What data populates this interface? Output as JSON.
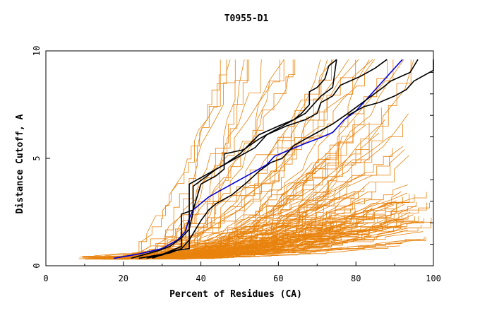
{
  "chart_data": {
    "type": "line",
    "title": "T0955-D1",
    "xlabel": "Percent of Residues (CA)",
    "ylabel": "Distance Cutoff, A",
    "xlim": [
      0,
      100
    ],
    "ylim": [
      0,
      10
    ],
    "x_ticks": [
      "0",
      "20",
      "40",
      "60",
      "80",
      "100"
    ],
    "y_ticks": [
      "0",
      "5",
      "10"
    ],
    "grid": false,
    "legend": "none",
    "colors": {
      "background_series": "#e8820c",
      "highlight_black": "#000000",
      "highlight_blue": "#0000dd"
    },
    "highlight_series": [
      {
        "color": "#0000dd",
        "points": [
          [
            17.5,
            0.35
          ],
          [
            24,
            0.55
          ],
          [
            30,
            0.8
          ],
          [
            34,
            1.2
          ],
          [
            36,
            1.6
          ],
          [
            37,
            2.2
          ],
          [
            38,
            2.6
          ],
          [
            40,
            2.9
          ],
          [
            42,
            3.2
          ],
          [
            46,
            3.6
          ],
          [
            50,
            4.0
          ],
          [
            53,
            4.3
          ],
          [
            57,
            4.7
          ],
          [
            59,
            5.1
          ],
          [
            63,
            5.4
          ],
          [
            67,
            5.7
          ],
          [
            70,
            5.9
          ],
          [
            74,
            6.2
          ],
          [
            77,
            6.8
          ],
          [
            80,
            7.2
          ],
          [
            84,
            8.0
          ],
          [
            88,
            8.8
          ],
          [
            92,
            9.6
          ]
        ]
      },
      {
        "color": "#000000",
        "points": [
          [
            24,
            0.35
          ],
          [
            32,
            0.6
          ],
          [
            35,
            0.8
          ],
          [
            37,
            1.2
          ],
          [
            40,
            2.1
          ],
          [
            42,
            2.6
          ],
          [
            44,
            2.9
          ],
          [
            48,
            3.3
          ],
          [
            52,
            3.9
          ],
          [
            55,
            4.4
          ],
          [
            58,
            4.8
          ],
          [
            61,
            5.0
          ],
          [
            62,
            5.2
          ],
          [
            64,
            5.6
          ],
          [
            67,
            5.9
          ],
          [
            70,
            6.2
          ],
          [
            74,
            6.6
          ],
          [
            78,
            7.1
          ],
          [
            81,
            7.5
          ],
          [
            84,
            7.9
          ],
          [
            87,
            8.3
          ],
          [
            89,
            8.6
          ],
          [
            94,
            9.0
          ],
          [
            96,
            9.6
          ]
        ]
      },
      {
        "color": "#000000",
        "points": [
          [
            26,
            0.35
          ],
          [
            30,
            0.5
          ],
          [
            33,
            0.7
          ],
          [
            37,
            0.8
          ],
          [
            37,
            3.8
          ],
          [
            41,
            4.2
          ],
          [
            44,
            4.5
          ],
          [
            47,
            4.8
          ],
          [
            51,
            5.2
          ],
          [
            54,
            5.5
          ],
          [
            57,
            6.1
          ],
          [
            62,
            6.5
          ],
          [
            67,
            6.8
          ],
          [
            70,
            7.1
          ],
          [
            71,
            7.6
          ],
          [
            74,
            7.9
          ],
          [
            76,
            8.4
          ],
          [
            81,
            8.8
          ],
          [
            85,
            9.2
          ],
          [
            88,
            9.6
          ]
        ]
      },
      {
        "color": "#000000",
        "points": [
          [
            27.5,
            0.35
          ],
          [
            31,
            0.6
          ],
          [
            35,
            0.9
          ],
          [
            35,
            1.3
          ],
          [
            37,
            1.7
          ],
          [
            38,
            2.5
          ],
          [
            38,
            3.7
          ],
          [
            41,
            4.1
          ],
          [
            44,
            4.5
          ],
          [
            46,
            4.7
          ],
          [
            50,
            5.2
          ],
          [
            55,
            6.1
          ],
          [
            60,
            6.5
          ],
          [
            64,
            6.8
          ],
          [
            67,
            7.1
          ],
          [
            71,
            7.9
          ],
          [
            74,
            8.3
          ],
          [
            75,
            9.6
          ]
        ]
      },
      {
        "color": "#000000",
        "points": [
          [
            22,
            0.35
          ],
          [
            25,
            0.5
          ],
          [
            29,
            0.7
          ],
          [
            32,
            0.9
          ],
          [
            35,
            1.3
          ],
          [
            35,
            2.4
          ],
          [
            38,
            2.6
          ],
          [
            40,
            3.8
          ],
          [
            44,
            4.2
          ],
          [
            46,
            4.5
          ],
          [
            46,
            5.2
          ],
          [
            51,
            5.4
          ],
          [
            55,
            5.9
          ],
          [
            60,
            6.4
          ],
          [
            64,
            6.8
          ],
          [
            66,
            7.1
          ],
          [
            68,
            7.5
          ],
          [
            68,
            8.1
          ],
          [
            70,
            8.3
          ],
          [
            72,
            8.7
          ],
          [
            73,
            9.3
          ],
          [
            75,
            9.6
          ]
        ]
      },
      {
        "color": "#000000",
        "points": [
          [
            78,
            7.0
          ],
          [
            82,
            7.4
          ],
          [
            86,
            7.6
          ],
          [
            90,
            7.9
          ],
          [
            93,
            8.2
          ],
          [
            95,
            8.6
          ],
          [
            97,
            8.8
          ],
          [
            100,
            9.1
          ],
          [
            100,
            9.6
          ]
        ]
      }
    ],
    "background_series_count": 140
  }
}
